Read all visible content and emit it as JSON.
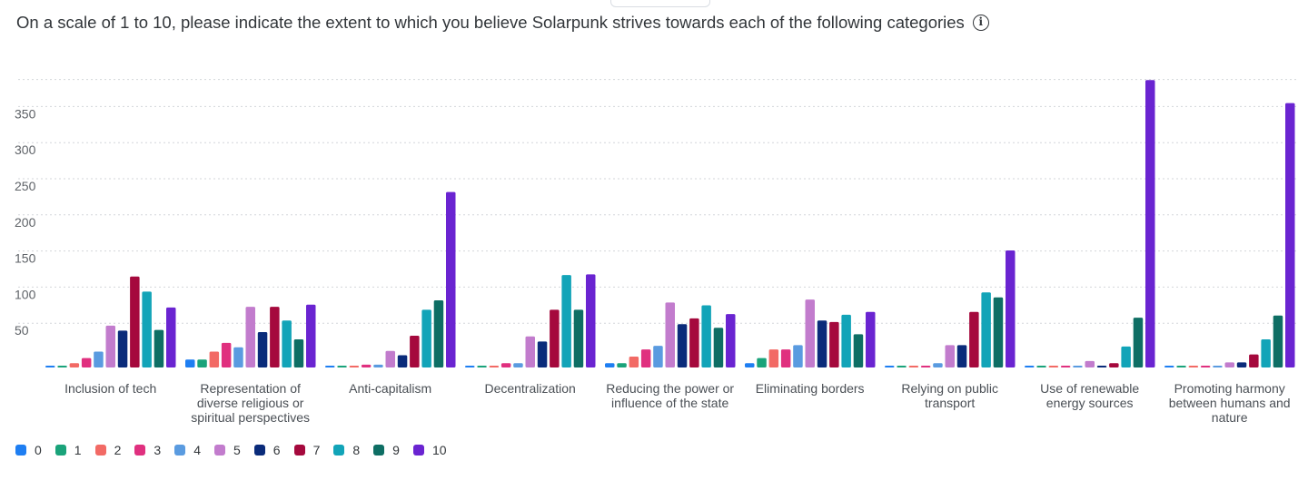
{
  "question": {
    "title": "On a scale of 1 to 10, please indicate the extent to which you believe Solarpunk strives towards each of the following categories",
    "info_icon": "info-circle-icon"
  },
  "chart_data": {
    "type": "bar",
    "title": "",
    "xlabel": "",
    "ylabel": "",
    "ylim": [
      0,
      400
    ],
    "yticks": [
      "50",
      "100",
      "150",
      "200",
      "250",
      "300",
      "350"
    ],
    "grid": true,
    "legend_position": "bottom-left",
    "categories": [
      [
        "Inclusion of tech"
      ],
      [
        "Representation of",
        "diverse religious or",
        "spiritual perspectives"
      ],
      [
        "Anti-capitalism"
      ],
      [
        "Decentralization"
      ],
      [
        "Reducing the power or",
        "influence of the state"
      ],
      [
        "Eliminating borders"
      ],
      [
        "Relying on public",
        "transport"
      ],
      [
        "Use of renewable",
        "energy sources"
      ],
      [
        "Promoting harmony",
        "between humans and",
        "nature"
      ]
    ],
    "series": [
      {
        "name": "0",
        "color": "#1e7ef2",
        "values": [
          2,
          11,
          2,
          2,
          6,
          6,
          2,
          2,
          2
        ]
      },
      {
        "name": "1",
        "color": "#1aa37a",
        "values": [
          2,
          11,
          2,
          2,
          6,
          13,
          2,
          2,
          2
        ]
      },
      {
        "name": "2",
        "color": "#f26a65",
        "values": [
          6,
          22,
          2,
          2,
          15,
          25,
          2,
          2,
          2
        ]
      },
      {
        "name": "3",
        "color": "#e0307f",
        "values": [
          13,
          34,
          4,
          6,
          25,
          25,
          2,
          2,
          2
        ]
      },
      {
        "name": "4",
        "color": "#5a9be0",
        "values": [
          22,
          28,
          4,
          6,
          30,
          31,
          6,
          2,
          2
        ]
      },
      {
        "name": "5",
        "color": "#c27ccd",
        "values": [
          58,
          84,
          23,
          43,
          90,
          94,
          31,
          9,
          7
        ]
      },
      {
        "name": "6",
        "color": "#0a2b7a",
        "values": [
          51,
          49,
          17,
          36,
          60,
          65,
          31,
          2,
          7
        ]
      },
      {
        "name": "7",
        "color": "#a5093d",
        "values": [
          126,
          84,
          44,
          80,
          68,
          63,
          77,
          6,
          18
        ]
      },
      {
        "name": "8",
        "color": "#12a4b8",
        "values": [
          105,
          65,
          80,
          128,
          86,
          73,
          104,
          29,
          39
        ]
      },
      {
        "name": "9",
        "color": "#0e6e64",
        "values": [
          52,
          39,
          93,
          80,
          55,
          46,
          97,
          69,
          72
        ]
      },
      {
        "name": "10",
        "color": "#6a24d1",
        "values": [
          83,
          87,
          243,
          129,
          74,
          77,
          162,
          398,
          366
        ]
      }
    ]
  }
}
